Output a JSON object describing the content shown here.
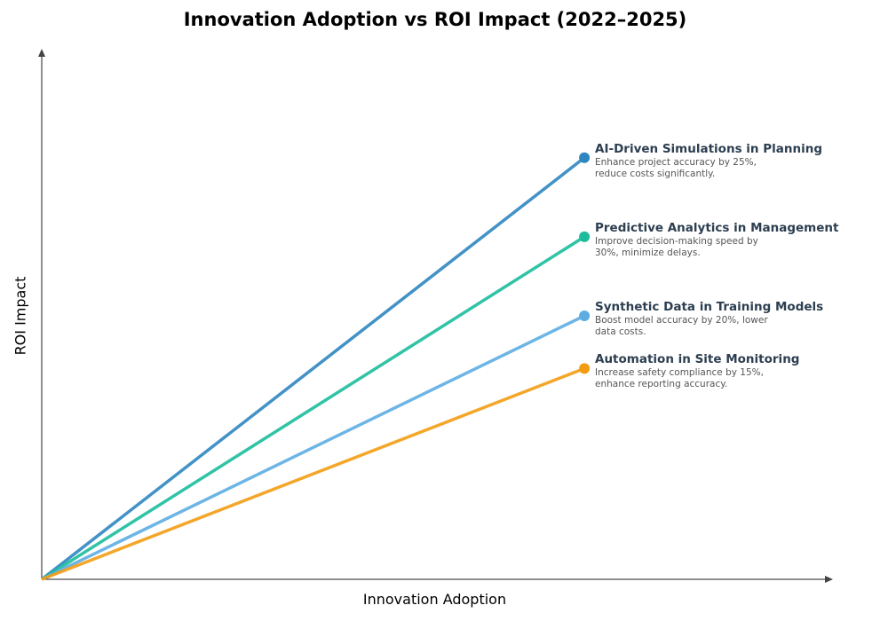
{
  "chart_data": {
    "type": "line",
    "title": "Innovation Adoption vs ROI Impact (2022–2025)",
    "xlabel": "Innovation Adoption",
    "ylabel": "ROI Impact",
    "xlim": [
      0,
      1
    ],
    "ylim": [
      0,
      1
    ],
    "grid": false,
    "ticks_shown": false,
    "series": [
      {
        "name": "AI-Driven Simulations in Planning",
        "description": "Enhance project accuracy by 25%, reduce costs significantly.",
        "x": [
          0,
          0.7
        ],
        "y": [
          0,
          0.8
        ],
        "color": "#2e86c1"
      },
      {
        "name": "Predictive Analytics in Management",
        "description": "Improve decision-making speed by 30%, minimize delays.",
        "x": [
          0,
          0.7
        ],
        "y": [
          0,
          0.65
        ],
        "color": "#1abc9c"
      },
      {
        "name": "Synthetic Data in Training Models",
        "description": "Boost model accuracy by 20%, lower data costs.",
        "x": [
          0,
          0.7
        ],
        "y": [
          0,
          0.5
        ],
        "color": "#5dade2"
      },
      {
        "name": "Automation in Site Monitoring",
        "description": "Increase safety compliance by 15%, enhance reporting accuracy.",
        "x": [
          0,
          0.7
        ],
        "y": [
          0,
          0.4
        ],
        "color": "#f39c12"
      }
    ]
  }
}
